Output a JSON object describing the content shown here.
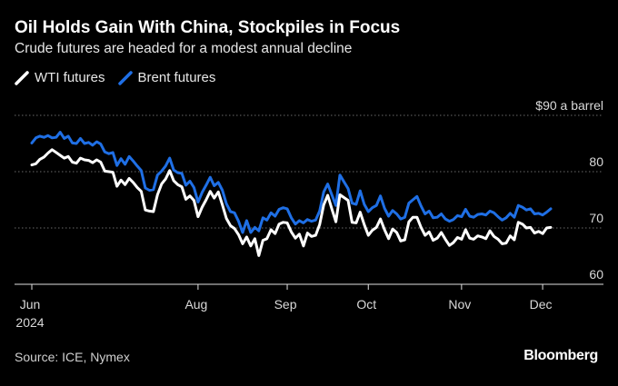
{
  "header": {
    "title": "Oil Holds Gain With China, Stockpiles in Focus",
    "subtitle": "Crude futures are headed for a modest annual decline"
  },
  "legend": {
    "items": [
      {
        "label": "WTI futures",
        "color": "#ffffff"
      },
      {
        "label": "Brent futures",
        "color": "#1f6fe5"
      }
    ]
  },
  "footer": {
    "source": "Source: ICE, Nymex",
    "brand": "Bloomberg"
  },
  "chart_data": {
    "type": "line",
    "ylim": [
      60,
      90
    ],
    "y_ticks": [
      {
        "value": 90,
        "label": "$90 a barrel"
      },
      {
        "value": 80,
        "label": "80"
      },
      {
        "value": 70,
        "label": "70"
      },
      {
        "value": 60,
        "label": "60"
      }
    ],
    "x_ticks": [
      {
        "label": "Jun",
        "sublabel": "2024",
        "index": 0
      },
      {
        "label": "Aug",
        "index": 41
      },
      {
        "label": "Sep",
        "index": 63
      },
      {
        "label": "Oct",
        "index": 83
      },
      {
        "label": "Nov",
        "index": 106
      },
      {
        "label": "Dec",
        "index": 126
      }
    ],
    "grid": true,
    "legend_position": "top-left",
    "series": [
      {
        "name": "WTI futures",
        "color": "#ffffff",
        "values": [
          81.2,
          81.4,
          82.2,
          82.6,
          83.3,
          83.9,
          83.4,
          82.9,
          82.4,
          82.7,
          81.7,
          81.5,
          82.4,
          82.1,
          82.0,
          81.6,
          82.1,
          81.7,
          80.1,
          80.0,
          79.9,
          77.4,
          78.5,
          77.7,
          78.8,
          78.1,
          77.2,
          76.5,
          73.2,
          73.0,
          72.9,
          75.9,
          77.8,
          78.7,
          80.2,
          78.4,
          77.7,
          77.3,
          75.1,
          75.7,
          74.9,
          72.0,
          73.7,
          75.0,
          76.5,
          75.3,
          76.4,
          74.1,
          71.7,
          70.4,
          69.9,
          68.8,
          67.2,
          68.4,
          66.8,
          68.1,
          65.1,
          67.8,
          68.1,
          69.7,
          69.0,
          70.7,
          71.0,
          70.9,
          69.3,
          68.2,
          68.9,
          66.8,
          69.1,
          68.5,
          68.7,
          70.6,
          74.1,
          75.8,
          73.4,
          71.1,
          75.9,
          75.4,
          74.9,
          71.0,
          70.9,
          72.8,
          70.6,
          68.7,
          69.6,
          70.1,
          71.6,
          69.7,
          68.1,
          69.8,
          69.2,
          67.7,
          67.9,
          71.1,
          71.9,
          71.9,
          70.1,
          68.7,
          69.3,
          67.8,
          68.2,
          69.2,
          68.0,
          66.9,
          67.4,
          68.3,
          68.0,
          69.7,
          68.2,
          68.0,
          68.6,
          68.4,
          68.1,
          69.5,
          68.5,
          68.0,
          67.2,
          67.3,
          68.6,
          67.9,
          71.0,
          70.7,
          70.0,
          70.1,
          69.1,
          69.4,
          69.0,
          70.0,
          70.1
        ]
      },
      {
        "name": "Brent futures",
        "color": "#1f6fe5",
        "values": [
          85.1,
          86.0,
          86.3,
          86.1,
          86.4,
          86.0,
          86.1,
          87.0,
          85.9,
          86.3,
          85.1,
          85.0,
          85.9,
          85.0,
          85.2,
          84.7,
          85.3,
          84.9,
          83.5,
          83.2,
          83.4,
          81.1,
          82.3,
          81.3,
          82.7,
          81.9,
          81.0,
          80.2,
          77.1,
          76.7,
          76.8,
          79.4,
          80.1,
          81.0,
          82.4,
          80.3,
          79.8,
          79.7,
          77.6,
          78.3,
          77.2,
          74.6,
          76.3,
          77.6,
          79.0,
          77.5,
          78.1,
          76.7,
          74.3,
          72.9,
          72.7,
          71.2,
          69.2,
          71.3,
          69.2,
          70.1,
          69.5,
          71.8,
          71.4,
          72.7,
          72.1,
          73.3,
          73.6,
          73.4,
          71.8,
          70.7,
          71.3,
          70.9,
          71.5,
          71.2,
          71.4,
          73.0,
          76.4,
          77.8,
          75.9,
          74.0,
          79.4,
          78.2,
          77.0,
          74.4,
          74.2,
          76.6,
          74.2,
          72.9,
          73.6,
          74.0,
          75.7,
          73.5,
          72.1,
          73.1,
          72.5,
          71.6,
          71.9,
          74.4,
          75.0,
          75.6,
          73.9,
          72.5,
          73.0,
          71.8,
          71.9,
          72.5,
          71.6,
          71.2,
          71.5,
          72.2,
          72.0,
          73.3,
          72.1,
          71.9,
          72.4,
          72.5,
          72.3,
          73.0,
          72.7,
          72.0,
          71.4,
          71.8,
          72.6,
          71.9,
          74.0,
          73.7,
          73.2,
          73.4,
          72.5,
          72.6,
          72.3,
          72.8,
          73.4
        ]
      }
    ]
  }
}
